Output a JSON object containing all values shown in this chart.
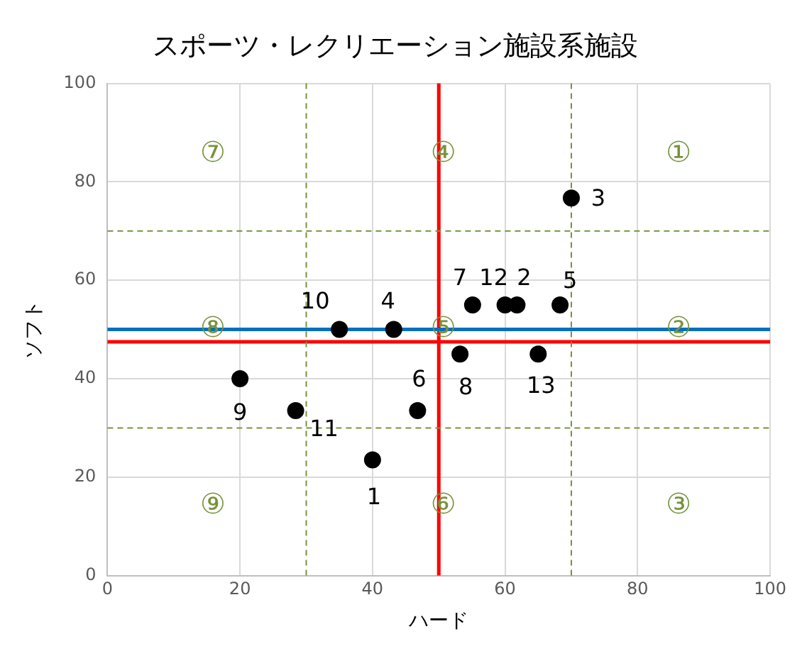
{
  "chart_data": {
    "type": "scatter",
    "title": "スポーツ・レクリエーション施設系施設",
    "xlabel": "ハード",
    "ylabel": "ソフト",
    "xlim": [
      0,
      100
    ],
    "xticks": [
      0,
      20,
      40,
      60,
      80,
      100
    ],
    "ylim": [
      0,
      100
    ],
    "yticks": [
      0,
      20,
      40,
      60,
      80,
      100
    ],
    "grid": true,
    "marker": "circle",
    "series": [
      {
        "color": "#000000",
        "x": [
          40,
          61.8,
          70,
          43.2,
          68.3,
          46.8,
          55.1,
          53.2,
          20,
          35,
          28.4,
          60,
          65
        ],
        "values": [
          23.5,
          55,
          76.7,
          50,
          55,
          33.5,
          55,
          45,
          40,
          50,
          33.5,
          55,
          45
        ]
      }
    ],
    "ref_lines": [
      {
        "axis": "x",
        "value": 50,
        "color": "#ff0000",
        "line_style": "solid"
      },
      {
        "axis": "y",
        "value": 47.5,
        "color": "#ff0000",
        "line_style": "solid"
      },
      {
        "axis": "y",
        "value": 50,
        "color": "#0070c0",
        "line_style": "solid"
      },
      {
        "axis": "x",
        "value": 30,
        "color": "#77933c",
        "line_style": "dashed"
      },
      {
        "axis": "x",
        "value": 70,
        "color": "#77933c",
        "line_style": "dashed"
      },
      {
        "axis": "y",
        "value": 70,
        "color": "#77933c",
        "line_style": "dashed"
      },
      {
        "axis": "y",
        "value": 30,
        "color": "#77933c",
        "line_style": "dashed"
      }
    ],
    "annotations": [
      {
        "text": "1",
        "x": 40,
        "y": 23.5
      },
      {
        "text": "2",
        "x": 61.8,
        "y": 55
      },
      {
        "text": "3",
        "x": 70,
        "y": 76.7
      },
      {
        "text": "4",
        "x": 43.2,
        "y": 50
      },
      {
        "text": "5",
        "x": 68.3,
        "y": 55
      },
      {
        "text": "6",
        "x": 46.8,
        "y": 33.5
      },
      {
        "text": "7",
        "x": 55.1,
        "y": 55
      },
      {
        "text": "8",
        "x": 53.2,
        "y": 45
      },
      {
        "text": "9",
        "x": 20,
        "y": 40
      },
      {
        "text": "10",
        "x": 35,
        "y": 50
      },
      {
        "text": "11",
        "x": 28.4,
        "y": 33.5
      },
      {
        "text": "12",
        "x": 60,
        "y": 55
      },
      {
        "text": "13",
        "x": 65,
        "y": 45
      },
      "①",
      "②",
      "③",
      "④",
      "⑤",
      "⑥",
      "⑦",
      "⑧",
      "⑨"
    ]
  }
}
